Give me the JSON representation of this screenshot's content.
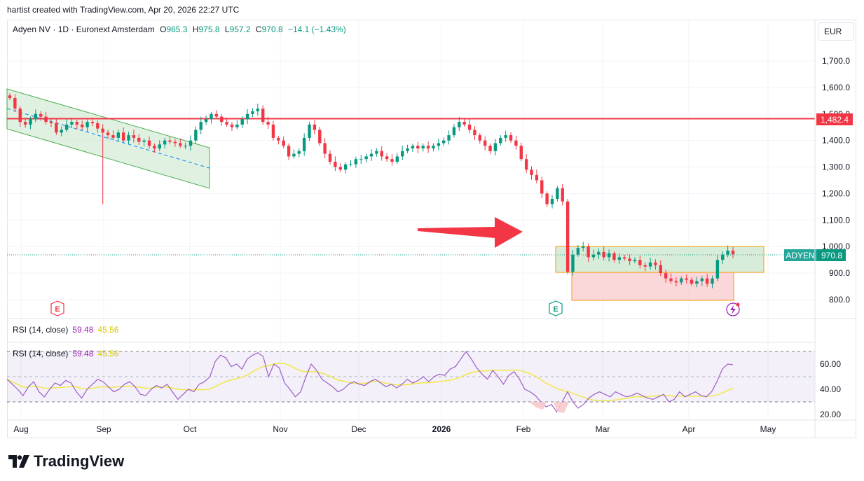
{
  "header": {
    "attribution": "hartist created with TradingView.com, Apr 20, 2026 22:27 UTC"
  },
  "legend": {
    "symbol": "Adyen NV · 1D · Euronext Amsterdam",
    "o_label": "O",
    "o": "965.3",
    "h_label": "H",
    "h": "975.8",
    "l_label": "L",
    "l": "957.2",
    "c_label": "C",
    "c": "970.8",
    "change": "−14.1 (−1.43%)"
  },
  "currency_button": "EUR",
  "price_tag": {
    "symbol": "ADYEN",
    "value": "970.8"
  },
  "resistance_tag": "1,482.4",
  "earnings_marker": "E",
  "rsi_pane_label": {
    "name": "RSI (14, close)",
    "rsi": "59.48",
    "ma": "45.56"
  },
  "rsi_overlay_label": {
    "name": "RSI (14, close)",
    "rsi": "59.48",
    "ma": "45.56"
  },
  "colors": {
    "up": "#089981",
    "down": "#f23645",
    "resistance": "#f23645",
    "rsi": "#9c5fc7",
    "rsi_ma": "#f0e84a",
    "channel": "#4caf50",
    "box_green": "#c8e6c9",
    "box_red": "#f8c9cc",
    "box_border": "#ff9800"
  },
  "footer": {
    "brand": "TradingView",
    "icon": "tradingview-logo-icon"
  },
  "chart_data": {
    "type": "candlestick",
    "title": "Adyen NV · 1D · Euronext Amsterdam",
    "currency": "EUR",
    "price_axis_ticks": [
      "1,700.0",
      "1,600.0",
      "1,500.0",
      "1,400.0",
      "1,300.0",
      "1,200.0",
      "1,100.0",
      "1,000.0",
      "900.0",
      "800.0"
    ],
    "price_range": [
      760,
      1760
    ],
    "time_axis_labels": [
      "Aug",
      "Sep",
      "Oct",
      "Nov",
      "Dec",
      "2026",
      "Feb",
      "Mar",
      "Apr",
      "May"
    ],
    "resistance_level": 1482.4,
    "last_price": 970.8,
    "closes_approx": [
      1560,
      1520,
      1470,
      1460,
      1480,
      1500,
      1490,
      1470,
      1465,
      1430,
      1440,
      1460,
      1470,
      1460,
      1450,
      1470,
      1465,
      1445,
      1430,
      1420,
      1410,
      1430,
      1400,
      1420,
      1410,
      1395,
      1400,
      1380,
      1370,
      1385,
      1400,
      1395,
      1390,
      1380,
      1380,
      1400,
      1440,
      1470,
      1480,
      1500,
      1490,
      1470,
      1460,
      1450,
      1460,
      1480,
      1500,
      1510,
      1520,
      1470,
      1460,
      1410,
      1400,
      1380,
      1340,
      1350,
      1360,
      1410,
      1460,
      1440,
      1390,
      1350,
      1320,
      1300,
      1290,
      1310,
      1310,
      1330,
      1330,
      1340,
      1350,
      1360,
      1340,
      1330,
      1320,
      1340,
      1360,
      1370,
      1380,
      1370,
      1380,
      1370,
      1380,
      1390,
      1400,
      1420,
      1450,
      1470,
      1460,
      1440,
      1420,
      1400,
      1380,
      1360,
      1390,
      1410,
      1420,
      1400,
      1380,
      1330,
      1290,
      1270,
      1250,
      1200,
      1160,
      1180,
      1220,
      1170,
      905,
      970,
      995,
      1000,
      960,
      970,
      980,
      960,
      975,
      950,
      960,
      955,
      945,
      950,
      930,
      925,
      940,
      930,
      900,
      880,
      870,
      865,
      880,
      875,
      860,
      870,
      880,
      860,
      880,
      950,
      970,
      985,
      971
    ],
    "channel_upper": [
      [
        0,
        1600
      ],
      [
        1,
        1470
      ]
    ],
    "channel_lower": [
      [
        0,
        1480
      ],
      [
        1,
        1350
      ]
    ],
    "zones": [
      {
        "label": "green-range",
        "low": 905,
        "high": 1000
      },
      {
        "label": "red-range",
        "low": 800,
        "high": 905
      }
    ],
    "rsi": {
      "name": "RSI (14, close)",
      "last": 59.48,
      "ma_last": 45.56,
      "ticks": [
        "60.00",
        "40.00",
        "20.00"
      ],
      "levels": [
        70,
        50,
        30
      ]
    }
  }
}
